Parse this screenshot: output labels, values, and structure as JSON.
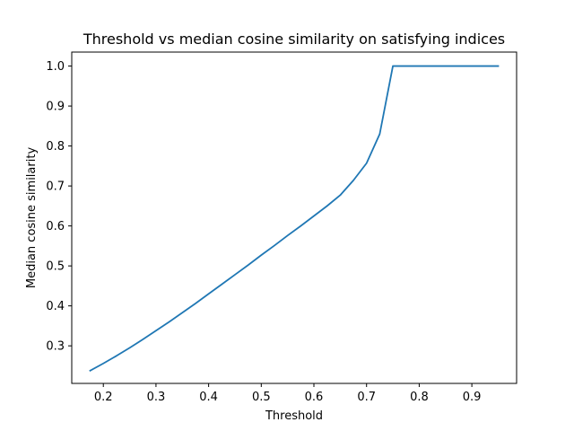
{
  "chart_data": {
    "type": "line",
    "title": "Threshold vs median cosine similarity on satisfying indices",
    "xlabel": "Threshold",
    "ylabel": "Median cosine similarity",
    "xlim": [
      0.14,
      0.985
    ],
    "ylim": [
      0.206,
      1.035
    ],
    "xticks": [
      0.2,
      0.3,
      0.4,
      0.5,
      0.6,
      0.7,
      0.8,
      0.9
    ],
    "xtick_labels": [
      "0.2",
      "0.3",
      "0.4",
      "0.5",
      "0.6",
      "0.7",
      "0.8",
      "0.9"
    ],
    "yticks": [
      0.3,
      0.4,
      0.5,
      0.6,
      0.7,
      0.8,
      0.9,
      1.0
    ],
    "ytick_labels": [
      "0.3",
      "0.4",
      "0.5",
      "0.6",
      "0.7",
      "0.8",
      "0.9",
      "1.0"
    ],
    "grid": false,
    "legend": "none",
    "series": [
      {
        "color": "#1f77b4",
        "points": [
          [
            0.175,
            0.238
          ],
          [
            0.2,
            0.256
          ],
          [
            0.225,
            0.275
          ],
          [
            0.25,
            0.295
          ],
          [
            0.275,
            0.316
          ],
          [
            0.3,
            0.338
          ],
          [
            0.325,
            0.36
          ],
          [
            0.35,
            0.383
          ],
          [
            0.375,
            0.406
          ],
          [
            0.4,
            0.43
          ],
          [
            0.425,
            0.454
          ],
          [
            0.45,
            0.478
          ],
          [
            0.475,
            0.502
          ],
          [
            0.5,
            0.527
          ],
          [
            0.525,
            0.551
          ],
          [
            0.55,
            0.576
          ],
          [
            0.575,
            0.6
          ],
          [
            0.6,
            0.625
          ],
          [
            0.625,
            0.65
          ],
          [
            0.65,
            0.677
          ],
          [
            0.675,
            0.714
          ],
          [
            0.7,
            0.757
          ],
          [
            0.725,
            0.83
          ],
          [
            0.75,
            1.0
          ],
          [
            0.775,
            1.0
          ],
          [
            0.8,
            1.0
          ],
          [
            0.825,
            1.0
          ],
          [
            0.85,
            1.0
          ],
          [
            0.875,
            1.0
          ],
          [
            0.9,
            1.0
          ],
          [
            0.925,
            1.0
          ],
          [
            0.95,
            1.0
          ]
        ]
      }
    ]
  }
}
